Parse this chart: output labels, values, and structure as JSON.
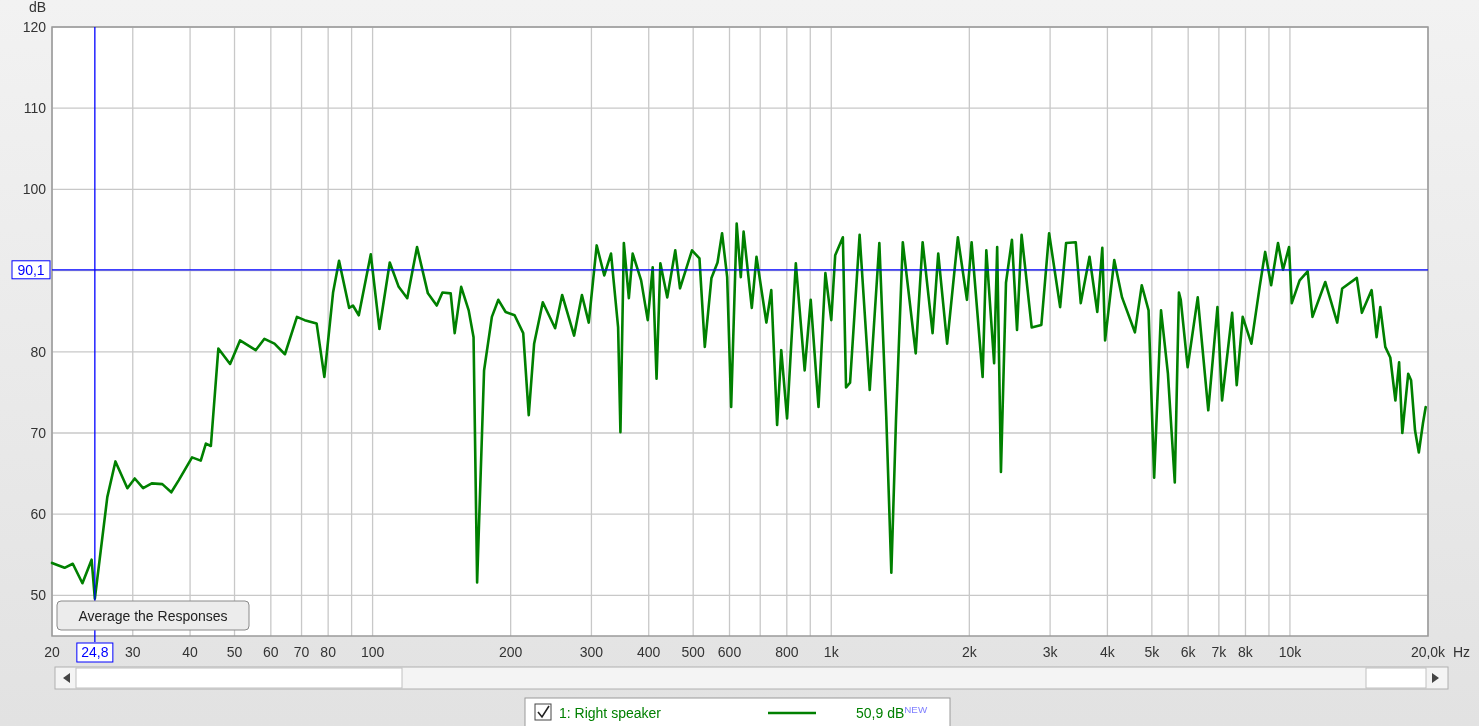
{
  "chart_data": {
    "type": "line",
    "ylabel": "dB",
    "xlabel": "Hz",
    "log": "x",
    "grid": true,
    "legend": "bottom",
    "marker": "none",
    "line_style": "solid",
    "xlim": [
      20,
      20000
    ],
    "ylim": [
      45,
      120
    ],
    "xticks": [
      20,
      30,
      40,
      50,
      60,
      70,
      80,
      {
        "value": 90,
        "label": null
      },
      100,
      200,
      300,
      400,
      500,
      600,
      {
        "value": 700,
        "label": null
      },
      800,
      {
        "value": 900,
        "label": null
      },
      {
        "value": 1000,
        "label": "1k"
      },
      {
        "value": 2000,
        "label": "2k"
      },
      {
        "value": 3000,
        "label": "3k"
      },
      {
        "value": 4000,
        "label": "4k"
      },
      {
        "value": 5000,
        "label": "5k"
      },
      {
        "value": 6000,
        "label": "6k"
      },
      {
        "value": 7000,
        "label": "7k"
      },
      {
        "value": 8000,
        "label": "8k"
      },
      {
        "value": 9000,
        "label": null
      },
      {
        "value": 10000,
        "label": "10k"
      },
      {
        "value": 20000,
        "label": "20,0k"
      }
    ],
    "yticks": [
      50,
      60,
      70,
      80,
      {
        "value": 90,
        "label": null
      },
      100,
      110,
      120
    ],
    "ref_lines": [
      {
        "axis": "y",
        "value": 90.1,
        "label": "90,1",
        "color": "#0000ff"
      },
      {
        "axis": "x",
        "value": 24.8,
        "label": "24,8",
        "color": "#0000ff"
      }
    ],
    "annotations": [
      "Average the Responses",
      "50,9 dB$^{NEW}$"
    ],
    "x": [
      20,
      21.3,
      22.2,
      23.3,
      24.4,
      24.8,
      26.4,
      27.5,
      29.2,
      30.3,
      31.6,
      33,
      34.8,
      36.4,
      37.8,
      40.4,
      42.2,
      43.3,
      44.4,
      46.1,
      48.9,
      51.4,
      55.6,
      58.1,
      61.1,
      64.4,
      68.4,
      71.1,
      75.5,
      78.5,
      82,
      84.5,
      88.9,
      90.6,
      93.3,
      99.1,
      103.5,
      109,
      114,
      119,
      125,
      132,
      138,
      142,
      148,
      151,
      156,
      162,
      166,
      169,
      175,
      182,
      188,
      195,
      204,
      213,
      219,
      225,
      235,
      250,
      259,
      275,
      286,
      296,
      308,
      320,
      331,
      343,
      347,
      353,
      362,
      369,
      385,
      398,
      408,
      416,
      424,
      439,
      457,
      468,
      497,
      516,
      530,
      548,
      565,
      578,
      593,
      605,
      622,
      635,
      644,
      671,
      687,
      722,
      740,
      762,
      778,
      801,
      837,
      875,
      902,
      938,
      971,
      1000,
      1020,
      1060,
      1077,
      1099,
      1153,
      1213,
      1273,
      1318,
      1352,
      1384,
      1432,
      1528,
      1582,
      1663,
      1711,
      1789,
      1888,
      1976,
      2023,
      2138,
      2178,
      2265,
      2300,
      2344,
      2404,
      2477,
      2541,
      2600,
      2735,
      2871,
      2985,
      3155,
      3251,
      3412,
      3499,
      3656,
      3802,
      3899,
      3954,
      4140,
      4305,
      4592,
      4753,
      4918,
      5058,
      5236,
      5420,
      5610,
      5728,
      5781,
      5984,
      6295,
      6637,
      6950,
      7112,
      7482,
      7656,
      7889,
      8241,
      8590,
      8831,
      9100,
      9419,
      9660,
      9954,
      10093,
      10500,
      10930,
      11200,
      11940,
      12680,
      13000,
      13990,
      14350,
      15070,
      15450,
      15740,
      16140,
      16550,
      16980,
      17300,
      17580,
      18110,
      18370,
      18740,
      19100,
      19500,
      19770
    ],
    "series": [
      {
        "name": "1: Right speaker",
        "color": "#008000",
        "values": [
          54.0,
          53.4,
          53.9,
          51.5,
          54.4,
          49.6,
          62.1,
          66.5,
          63.2,
          64.4,
          63.2,
          63.8,
          63.7,
          62.7,
          64.2,
          67.0,
          66.6,
          68.7,
          68.4,
          80.4,
          78.5,
          81.4,
          80.2,
          81.6,
          81.0,
          79.7,
          84.3,
          83.9,
          83.5,
          76.9,
          87.3,
          91.2,
          85.4,
          85.7,
          84.5,
          92.0,
          82.8,
          91.0,
          88.0,
          86.6,
          92.9,
          87.2,
          85.7,
          87.3,
          87.2,
          82.3,
          88.0,
          85.1,
          81.8,
          51.6,
          77.7,
          84.3,
          86.4,
          84.9,
          84.5,
          82.3,
          72.2,
          81.0,
          86.1,
          82.9,
          87.0,
          82.0,
          87.0,
          83.6,
          93.1,
          89.4,
          92.1,
          83.0,
          70.1,
          93.4,
          86.6,
          92.1,
          88.8,
          83.9,
          90.4,
          76.7,
          90.9,
          86.7,
          92.5,
          87.8,
          92.5,
          91.5,
          80.6,
          89.1,
          91.0,
          94.6,
          89.2,
          73.2,
          95.8,
          89.2,
          94.8,
          85.4,
          91.7,
          83.6,
          87.6,
          71.0,
          80.2,
          71.8,
          90.9,
          77.7,
          86.4,
          73.2,
          89.7,
          83.9,
          91.9,
          94.1,
          75.6,
          76.2,
          94.4,
          75.3,
          93.4,
          72.0,
          52.8,
          71.6,
          93.5,
          79.8,
          93.5,
          82.3,
          92.1,
          81.0,
          94.1,
          86.4,
          93.5,
          76.9,
          92.5,
          78.6,
          92.9,
          65.2,
          88.5,
          93.8,
          82.7,
          94.4,
          83.0,
          83.3,
          94.6,
          85.5,
          93.4,
          93.5,
          86.0,
          91.7,
          84.9,
          92.8,
          81.4,
          91.3,
          86.7,
          82.4,
          88.2,
          85.1,
          64.5,
          85.1,
          77.3,
          63.9,
          87.3,
          86.4,
          78.1,
          86.7,
          72.8,
          85.5,
          74.0,
          84.8,
          75.9,
          84.3,
          81.0,
          88.0,
          92.3,
          88.2,
          93.4,
          90.1,
          92.9,
          86.0,
          88.8,
          89.9,
          84.3,
          88.6,
          83.6,
          87.8,
          89.1,
          84.8,
          87.6,
          81.8,
          85.5,
          80.6,
          79.3,
          74.0,
          78.7,
          70.0,
          77.3,
          76.5,
          70.3,
          67.6,
          71.2,
          73.2
        ]
      }
    ]
  }
}
